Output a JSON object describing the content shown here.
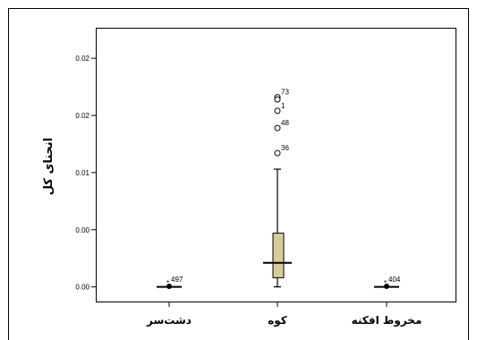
{
  "chart_data": {
    "type": "box",
    "ylabel": "انحنای کل",
    "xlabel": "",
    "yticks": [
      {
        "value": 0.0,
        "label": "0.00"
      },
      {
        "value": 0.005,
        "label": "0.00"
      },
      {
        "value": 0.01,
        "label": "0.01"
      },
      {
        "value": 0.015,
        "label": "0.02"
      },
      {
        "value": 0.02,
        "label": "0.02"
      }
    ],
    "ylim": [
      -0.0005,
      0.0215
    ],
    "grid": false,
    "categories": [
      "دشت‌سر",
      "کوه",
      "مخروط افکنه"
    ],
    "boxes": [
      {
        "category": "دشت‌سر",
        "q1": 0.0,
        "median": 0.0,
        "q3": 0.0,
        "whisker_low": 0.0,
        "whisker_high": 0.0,
        "outliers": [],
        "extremes": [
          {
            "value": 5e-05,
            "label": "497"
          }
        ]
      },
      {
        "category": "کوه",
        "q1": 0.0008,
        "median": 0.0021,
        "q3": 0.0047,
        "whisker_low": 0.0,
        "whisker_high": 0.0103,
        "outliers": [
          {
            "value": 0.0166,
            "label": "73"
          },
          {
            "value": 0.0164,
            "label": ""
          },
          {
            "value": 0.0154,
            "label": "1"
          },
          {
            "value": 0.0139,
            "label": "48"
          },
          {
            "value": 0.0117,
            "label": "36"
          }
        ],
        "extremes": []
      },
      {
        "category": "مخروط افکنه",
        "q1": 0.0,
        "median": 0.0,
        "q3": 0.0,
        "whisker_low": 0.0,
        "whisker_high": 0.0,
        "outliers": [],
        "extremes": [
          {
            "value": 5e-05,
            "label": "404"
          }
        ]
      }
    ],
    "box_color": "#d8cc9a"
  }
}
